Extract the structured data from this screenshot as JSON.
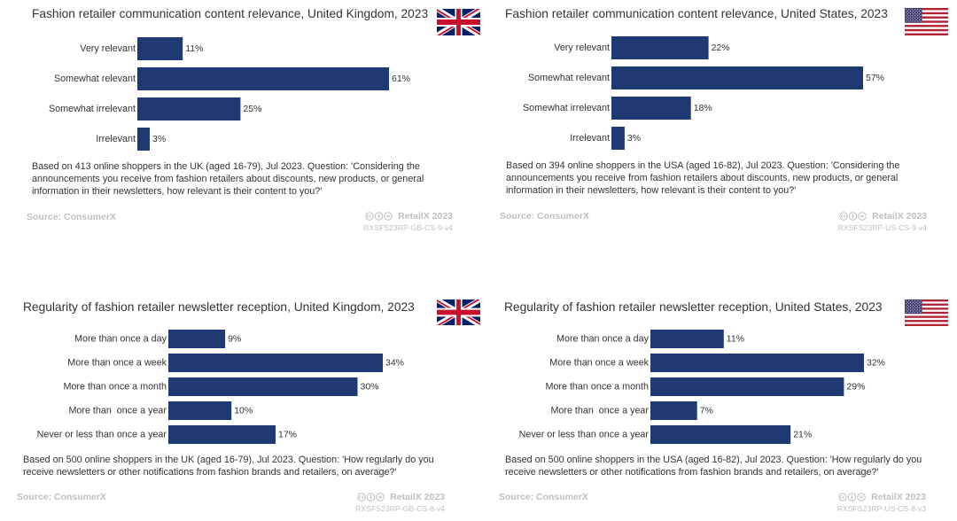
{
  "colors": {
    "bar": "#1f3a72"
  },
  "chart_data": [
    {
      "type": "bar",
      "orientation": "horizontal",
      "grid": false,
      "title": "Fashion retailer communication content relevance, United Kingdom, 2023",
      "flag_icon": "uk-flag-icon",
      "categories": [
        "Very relevant",
        "Somewhat relevant",
        "Somewhat irrelevant",
        "Irrelevant"
      ],
      "values": [
        11,
        61,
        25,
        3
      ],
      "value_labels": [
        "11%",
        "61%",
        "25%",
        "3%"
      ],
      "note_lines": [
        "Based on 413 online shoppers in the UK (aged 16-79), Jul 2023. Question: 'Considering the",
        "announcements you receive from fashion retailers about discounts, new products, or general",
        "information in their newsletters, how relevant is their content to you?'"
      ],
      "source": "Source: ConsumerX",
      "license_icon": "cc-by-nd-icon",
      "brand": "RetailX 2023",
      "code": "RXSFS23RP-GB-CS-9-v4"
    },
    {
      "type": "bar",
      "orientation": "horizontal",
      "grid": false,
      "title": "Fashion retailer communication content relevance, United States, 2023",
      "flag_icon": "us-flag-icon",
      "categories": [
        "Very relevant",
        "Somewhat relevant",
        "Somewhat irrelevant",
        "Irrelevant"
      ],
      "values": [
        22,
        57,
        18,
        3
      ],
      "value_labels": [
        "22%",
        "57%",
        "18%",
        "3%"
      ],
      "note_lines": [
        "Based on 394 online shoppers in the USA (aged 16-82), Jul 2023. Question: 'Considering the",
        "announcements you receive from fashion retailers about discounts, new products, or general",
        "information in their newsletters, how relevant is their content to you?'"
      ],
      "source": "Source: ConsumerX",
      "license_icon": "cc-by-nd-icon",
      "brand": "RetailX 2023",
      "code": "RXSFS23RP-US-CS-9-v4"
    },
    {
      "type": "bar",
      "orientation": "horizontal",
      "grid": false,
      "title": "Regularity of fashion retailer newsletter reception, United Kingdom, 2023",
      "flag_icon": "uk-flag-icon",
      "categories": [
        "More than once a day",
        "More than once a week",
        "More than once a month",
        "More than  once a year",
        "Never or less than once a year"
      ],
      "values": [
        9,
        34,
        30,
        10,
        17
      ],
      "value_labels": [
        "9%",
        "34%",
        "30%",
        "10%",
        "17%"
      ],
      "note_lines": [
        "Based on 500 online shoppers in the UK (aged 16-79), Jul 2023. Question: 'How regularly do you",
        "receive newsletters or other notifications from fashion brands and retailers, on average?'"
      ],
      "source": "Source: ConsumerX",
      "license_icon": "cc-by-nd-icon",
      "brand": "RetailX 2023",
      "code": "RXSFS23RP-GB-CS-8-v4"
    },
    {
      "type": "bar",
      "orientation": "horizontal",
      "grid": false,
      "title": "Regularity of fashion retailer newsletter reception, United States, 2023",
      "flag_icon": "us-flag-icon",
      "categories": [
        "More than once a day",
        "More than once a week",
        "More than once a month",
        "More than  once a year",
        "Never or less than once a year"
      ],
      "values": [
        11,
        32,
        29,
        7,
        21
      ],
      "value_labels": [
        "11%",
        "32%",
        "29%",
        "7%",
        "21%"
      ],
      "note_lines": [
        "Based on 500 online shoppers in the USA (aged 16-82), Jul 2023. Question: 'How regularly do you",
        "receive newsletters or other notifications from fashion brands and retailers, on average?'"
      ],
      "source": "Source: ConsumerX",
      "license_icon": "cc-by-nd-icon",
      "brand": "RetailX 2023",
      "code": "RXSFS23RP-US-CS-8-v3"
    }
  ]
}
